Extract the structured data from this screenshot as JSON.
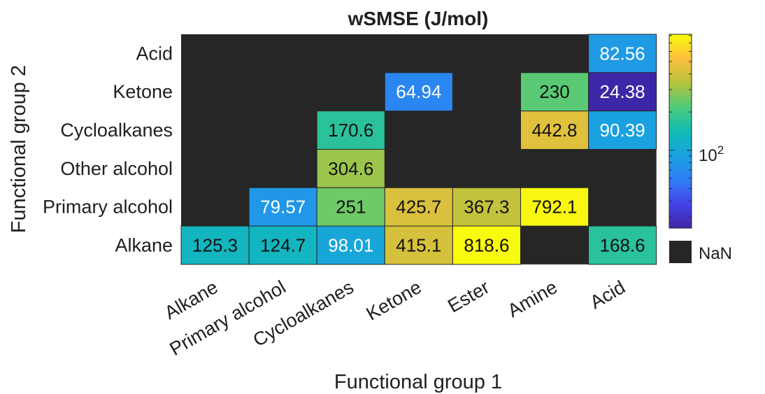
{
  "chart_data": {
    "type": "heatmap",
    "title": "wSMSE (J/mol)",
    "xlabel": "Functional group 1",
    "ylabel": "Functional group 2",
    "x_categories": [
      "Alkane",
      "Primary alcohol",
      "Cycloalkanes",
      "Ketone",
      "Ester",
      "Amine",
      "Acid"
    ],
    "y_categories": [
      "Acid",
      "Ketone",
      "Cycloalkanes",
      "Other alcohol",
      "Primary alcohol",
      "Alkane"
    ],
    "values": [
      [
        null,
        null,
        null,
        null,
        null,
        null,
        82.56
      ],
      [
        null,
        null,
        null,
        64.94,
        null,
        230,
        24.38
      ],
      [
        null,
        null,
        170.6,
        null,
        null,
        442.8,
        90.39
      ],
      [
        null,
        null,
        304.6,
        null,
        null,
        null,
        null
      ],
      [
        null,
        79.57,
        251,
        425.7,
        367.3,
        792.1,
        null
      ],
      [
        125.3,
        124.7,
        98.01,
        415.1,
        818.6,
        null,
        168.6
      ]
    ],
    "value_labels": [
      [
        null,
        null,
        null,
        null,
        null,
        null,
        "82.56"
      ],
      [
        null,
        null,
        null,
        "64.94",
        null,
        "230",
        "24.38"
      ],
      [
        null,
        null,
        "170.6",
        null,
        null,
        "442.8",
        "90.39"
      ],
      [
        null,
        null,
        "304.6",
        null,
        null,
        null,
        null
      ],
      [
        null,
        "79.57",
        "251",
        "425.7",
        "367.3",
        "792.1",
        null
      ],
      [
        "125.3",
        "124.7",
        "98.01",
        "415.1",
        "818.6",
        null,
        "168.6"
      ]
    ],
    "color_scale": "log",
    "color_range": [
      24.38,
      818.6
    ],
    "colormap": "parula",
    "colorbar_tick_label": "10",
    "colorbar_tick_exponent": "2",
    "colorbar_tick_value": 100,
    "nan_label": "NaN",
    "nan_color": "#262626"
  }
}
